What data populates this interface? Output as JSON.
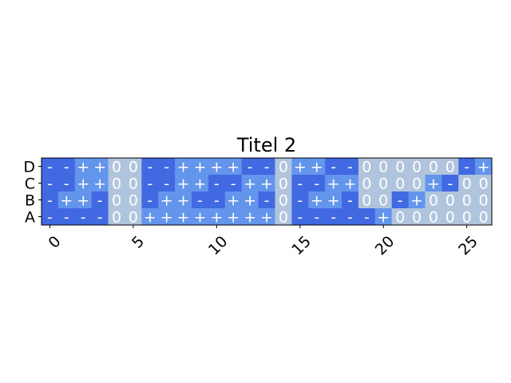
{
  "chart_data": {
    "type": "heatmap",
    "title": "Titel 2",
    "rows": [
      "D",
      "C",
      "B",
      "A"
    ],
    "x_ticks": [
      0,
      5,
      10,
      15,
      20,
      25
    ],
    "x_range": [
      -0.5,
      26.5
    ],
    "colors": {
      "-": "#4169e1",
      "+": "#6495ed",
      "0": "#b0c4de"
    },
    "cells": [
      [
        "-",
        "-",
        "+",
        "+",
        "0",
        "0",
        "-",
        "-",
        "+",
        "+",
        "+",
        "+",
        "-",
        "-",
        "0",
        "+",
        "+",
        "-",
        "-",
        "0",
        "0",
        "0",
        "0",
        "0",
        "0",
        "-",
        "+"
      ],
      [
        "-",
        "-",
        "+",
        "+",
        "0",
        "0",
        "-",
        "-",
        "+",
        "+",
        "-",
        "-",
        "+",
        "+",
        "0",
        "-",
        "-",
        "+",
        "+",
        "0",
        "0",
        "0",
        "0",
        "+",
        "-",
        "0",
        "0"
      ],
      [
        "-",
        "+",
        "+",
        "-",
        "0",
        "0",
        "-",
        "+",
        "+",
        "-",
        "-",
        "+",
        "+",
        "-",
        "0",
        "-",
        "+",
        "+",
        "-",
        "0",
        "0",
        "-",
        "+",
        "0",
        "0",
        "0",
        "0"
      ],
      [
        "-",
        "-",
        "-",
        "-",
        "0",
        "0",
        "+",
        "+",
        "+",
        "+",
        "+",
        "+",
        "+",
        "+",
        "0",
        "-",
        "-",
        "-",
        "-",
        "-",
        "+",
        "0",
        "0",
        "0",
        "0",
        "0",
        "0"
      ]
    ]
  }
}
